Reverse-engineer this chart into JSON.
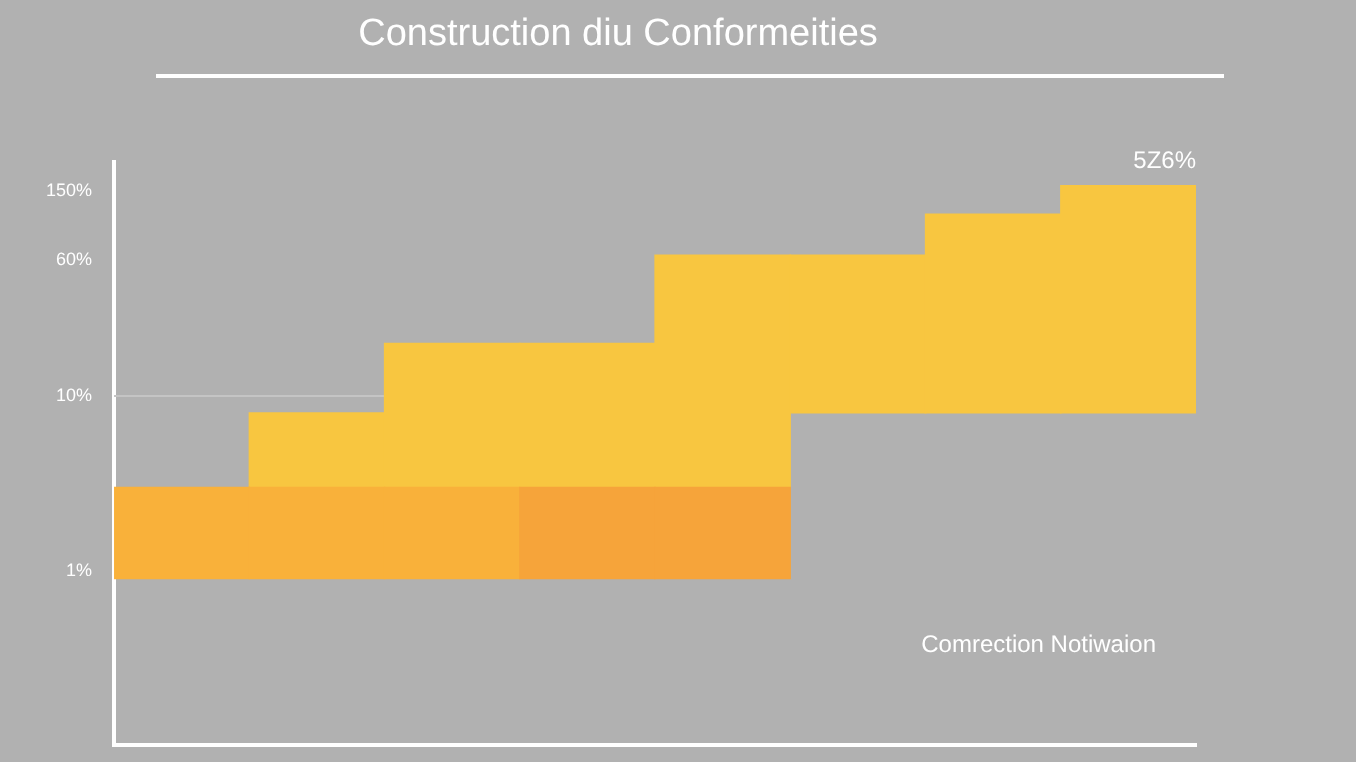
{
  "chart_data": {
    "type": "bar",
    "title": "Construction diu Conformeities",
    "categories": [
      null,
      null,
      null,
      null,
      null,
      null,
      null,
      null
    ],
    "series": [
      {
        "color": "#f9b13a",
        "colors": [
          "#f9b13a",
          "#f9b13a",
          "#f9b13a",
          "#f6a43a",
          "#f6a43a",
          null,
          null,
          null
        ],
        "base": [
          0.9,
          0.9,
          0.9,
          0.9,
          0.9,
          null,
          null,
          null
        ],
        "values": [
          2.1,
          2.1,
          2.1,
          2.1,
          2.1,
          null,
          null,
          null
        ]
      },
      {
        "color": "#f8c640",
        "base": [
          null,
          3,
          3,
          3,
          3,
          8,
          8,
          8
        ],
        "values": [
          null,
          5,
          17,
          17,
          61,
          56,
          102,
          152
        ]
      }
    ],
    "log": "y",
    "ylim": [
      0.1,
      220
    ],
    "yticks": [
      {
        "value": 1,
        "label": "1%"
      },
      {
        "value": 10,
        "label": "10%"
      },
      {
        "value": 60,
        "label": "60%"
      },
      {
        "value": 150,
        "label": "150%"
      }
    ],
    "tick_labels": "y",
    "ref_lines": [
      {
        "axis": "y",
        "value": 10,
        "color": "#c4c4c4"
      }
    ],
    "annotations": [
      "5Z6%",
      "Comrection Notiwaion"
    ]
  }
}
